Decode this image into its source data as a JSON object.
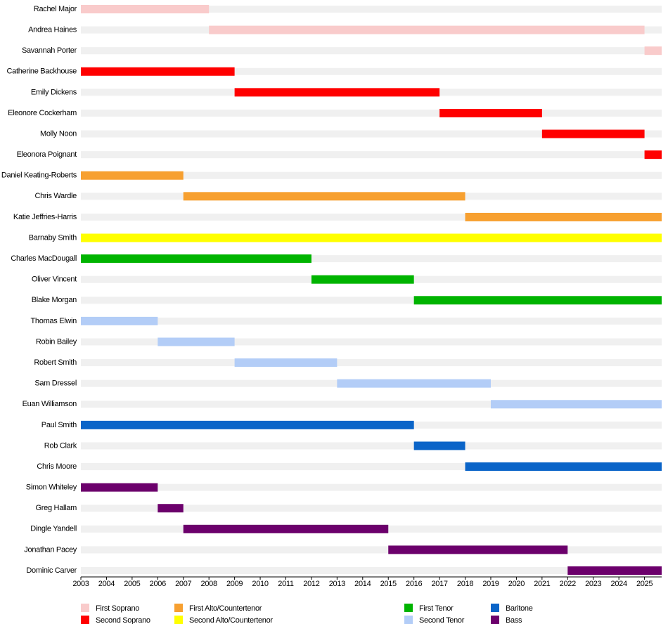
{
  "chart_data": {
    "type": "timeline",
    "xlim": [
      2003,
      2025.67
    ],
    "xticks": [
      2003,
      2004,
      2005,
      2006,
      2007,
      2008,
      2009,
      2010,
      2011,
      2012,
      2013,
      2014,
      2015,
      2016,
      2017,
      2018,
      2019,
      2020,
      2021,
      2022,
      2023,
      2024,
      2025
    ],
    "series": [
      {
        "name": "First Soprano",
        "color": "#f9cbcb",
        "members": [
          "Rachel Major",
          "Andrea Haines",
          "Savannah Porter"
        ],
        "start": [
          2003,
          2008,
          2025
        ],
        "end": [
          2008,
          2025,
          2025.67
        ]
      },
      {
        "name": "Second Soprano",
        "color": "#ff0000",
        "members": [
          "Catherine Backhouse",
          "Emily Dickens",
          "Eleonore Cockerham",
          "Molly Noon",
          "Eleonora Poignant"
        ],
        "start": [
          2003,
          2009,
          2017,
          2021,
          2025
        ],
        "end": [
          2009,
          2017,
          2021,
          2025,
          2025.67
        ]
      },
      {
        "name": "First Alto/Countertenor",
        "color": "#f7a030",
        "members": [
          "Daniel Keating-Roberts",
          "Chris Wardle",
          "Katie Jeffries-Harris"
        ],
        "start": [
          2003,
          2007,
          2018
        ],
        "end": [
          2007,
          2018,
          2025.67
        ]
      },
      {
        "name": "Second Alto/Countertenor",
        "color": "#ffff00",
        "members": [
          "Barnaby Smith"
        ],
        "start": [
          2003
        ],
        "end": [
          2025.67
        ]
      },
      {
        "name": "First Tenor",
        "color": "#00b400",
        "members": [
          "Charles MacDougall",
          "Oliver Vincent",
          "Blake Morgan"
        ],
        "start": [
          2003,
          2012,
          2016
        ],
        "end": [
          2012,
          2016,
          2025.67
        ]
      },
      {
        "name": "Second Tenor",
        "color": "#b3cdf7",
        "members": [
          "Thomas Elwin",
          "Robin Bailey",
          "Robert Smith",
          "Sam Dressel",
          "Euan Williamson"
        ],
        "start": [
          2003,
          2006,
          2009,
          2013,
          2019
        ],
        "end": [
          2006,
          2009,
          2013,
          2019,
          2025.67
        ]
      },
      {
        "name": "Baritone",
        "color": "#0a64c8",
        "members": [
          "Paul Smith",
          "Rob Clark",
          "Chris Moore"
        ],
        "start": [
          2003,
          2016,
          2018
        ],
        "end": [
          2016,
          2018,
          2025.67
        ]
      },
      {
        "name": "Bass",
        "color": "#6c006c",
        "members": [
          "Simon Whiteley",
          "Greg Hallam",
          "Dingle Yandell",
          "Jonathan Pacey",
          "Dominic Carver"
        ],
        "start": [
          2003,
          2006,
          2007,
          2015,
          2022
        ],
        "end": [
          2006,
          2007,
          2015,
          2022,
          2025.67
        ]
      }
    ]
  }
}
